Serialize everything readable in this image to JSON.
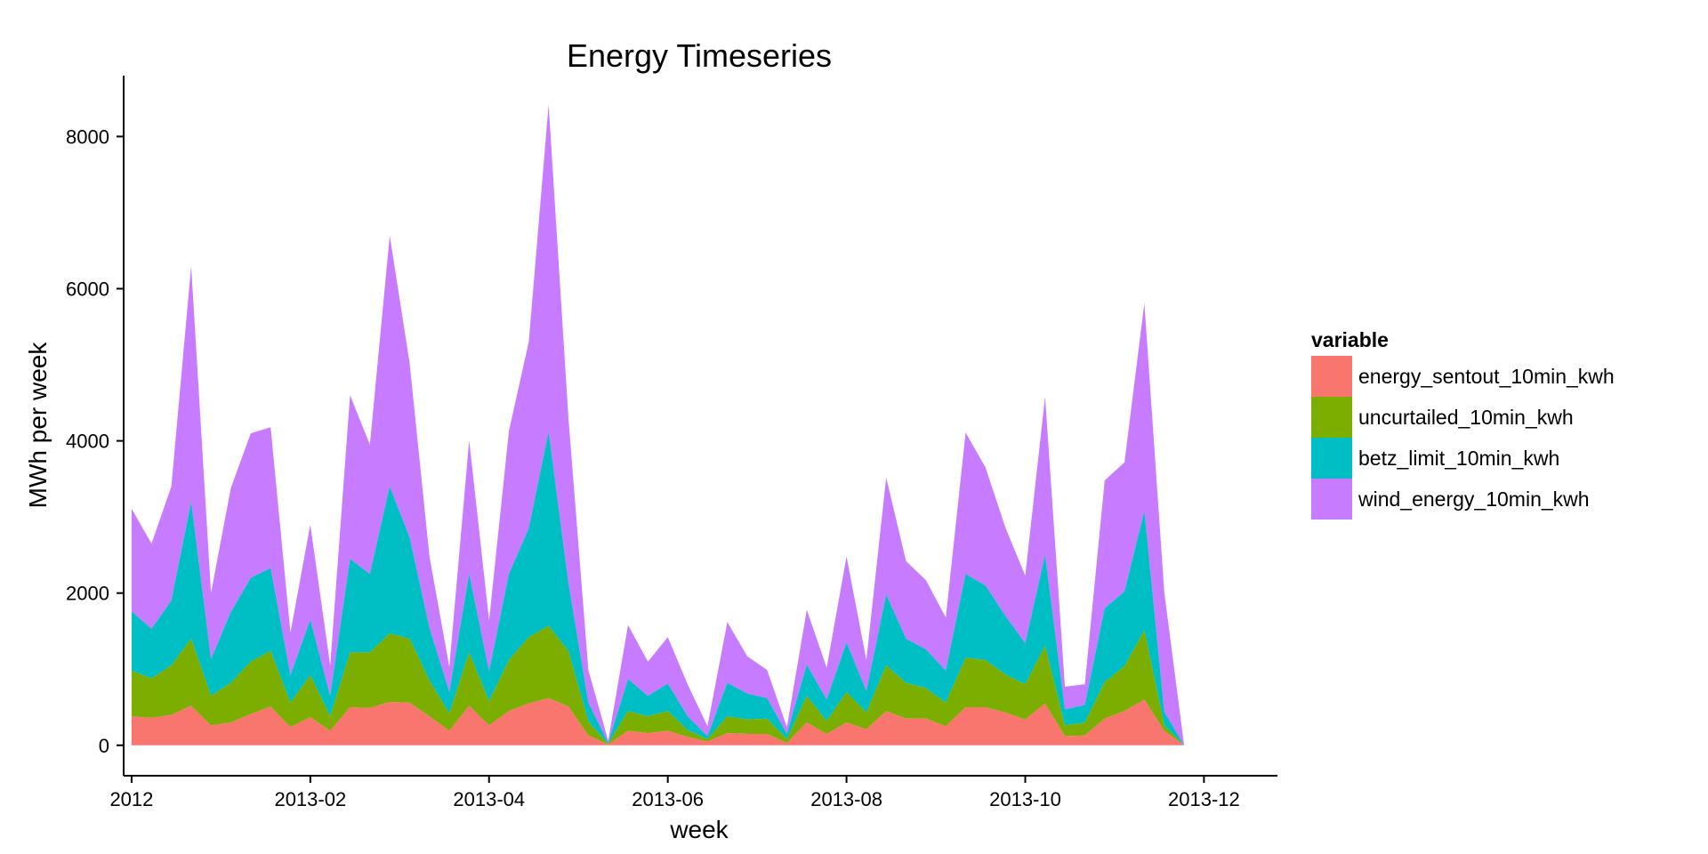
{
  "chart_data": {
    "type": "area",
    "stacked": true,
    "title": "Energy Timeseries",
    "xlabel": "week",
    "ylabel": "MWh per week",
    "ylim": [
      -400,
      8800
    ],
    "xlim": [
      -0.4,
      57.7
    ],
    "yticks": [
      0,
      2000,
      4000,
      6000,
      8000
    ],
    "xticks": [
      {
        "pos": 0,
        "label": "2012"
      },
      {
        "pos": 9,
        "label": "2013-02"
      },
      {
        "pos": 18,
        "label": "2013-04"
      },
      {
        "pos": 27,
        "label": "2013-06"
      },
      {
        "pos": 36,
        "label": "2013-08"
      },
      {
        "pos": 45,
        "label": "2013-10"
      },
      {
        "pos": 54,
        "label": "2013-12"
      }
    ],
    "x": [
      0,
      1,
      2,
      3,
      4,
      5,
      6,
      7,
      8,
      9,
      10,
      11,
      12,
      13,
      14,
      15,
      16,
      17,
      18,
      19,
      20,
      21,
      22,
      23,
      24,
      25,
      26,
      27,
      28,
      29,
      30,
      31,
      32,
      33,
      34,
      35,
      36,
      37,
      38,
      39,
      40,
      41,
      42,
      43,
      44,
      45,
      46,
      47,
      48,
      49,
      50,
      51,
      52,
      53,
      54,
      55,
      56,
      57,
      58,
      59
    ],
    "legend": {
      "title": "variable",
      "position": "right"
    },
    "grid": false,
    "series": [
      {
        "name": "energy_sentout_10min_kwh",
        "color": "#F8766D",
        "values": [
          380,
          360,
          400,
          520,
          260,
          300,
          410,
          510,
          240,
          370,
          190,
          500,
          490,
          570,
          560,
          380,
          190,
          520,
          260,
          450,
          550,
          620,
          510,
          130,
          10,
          190,
          160,
          190,
          110,
          50,
          160,
          150,
          150,
          30,
          300,
          150,
          300,
          210,
          450,
          350,
          350,
          250,
          500,
          500,
          430,
          340,
          550,
          120,
          130,
          350,
          450,
          600,
          190,
          0,
          0,
          0,
          0,
          0,
          0,
          0
        ]
      },
      {
        "name": "uncurtailed_10min_kwh",
        "color": "#7CAE00",
        "values": [
          980,
          880,
          1050,
          1400,
          650,
          820,
          1100,
          1240,
          560,
          920,
          380,
          1220,
          1220,
          1470,
          1400,
          850,
          420,
          1220,
          580,
          1120,
          1420,
          1570,
          1240,
          310,
          20,
          450,
          380,
          450,
          200,
          80,
          380,
          340,
          350,
          80,
          650,
          320,
          700,
          430,
          1050,
          820,
          750,
          560,
          1150,
          1120,
          930,
          800,
          1310,
          260,
          300,
          830,
          1040,
          1510,
          260,
          0,
          0,
          0,
          0,
          0,
          0,
          0
        ]
      },
      {
        "name": "betz_limit_10min_kwh",
        "color": "#00BFC4",
        "values": [
          1760,
          1530,
          1900,
          3200,
          1130,
          1750,
          2200,
          2330,
          920,
          1650,
          650,
          2450,
          2250,
          3400,
          2730,
          1540,
          700,
          2250,
          970,
          2250,
          2850,
          4120,
          2130,
          560,
          30,
          870,
          650,
          810,
          380,
          120,
          820,
          680,
          620,
          150,
          1060,
          600,
          1350,
          710,
          1980,
          1400,
          1260,
          980,
          2250,
          2100,
          1700,
          1340,
          2500,
          470,
          530,
          1800,
          2020,
          3080,
          440,
          0,
          0,
          0,
          0,
          0,
          0,
          0
        ]
      },
      {
        "name": "wind_energy_10min_kwh",
        "color": "#C77CFF",
        "values": [
          3110,
          2650,
          3400,
          6300,
          2000,
          3380,
          4100,
          4180,
          1480,
          2900,
          1050,
          4600,
          3950,
          6700,
          5020,
          2480,
          1030,
          4010,
          1640,
          4130,
          5300,
          8420,
          4300,
          990,
          60,
          1580,
          1100,
          1420,
          800,
          250,
          1620,
          1170,
          990,
          240,
          1780,
          1020,
          2480,
          1120,
          3520,
          2420,
          2170,
          1680,
          4110,
          3650,
          2860,
          2230,
          4580,
          770,
          800,
          3480,
          3720,
          5810,
          2010,
          0,
          0,
          0,
          0,
          0,
          0,
          0
        ]
      }
    ]
  }
}
